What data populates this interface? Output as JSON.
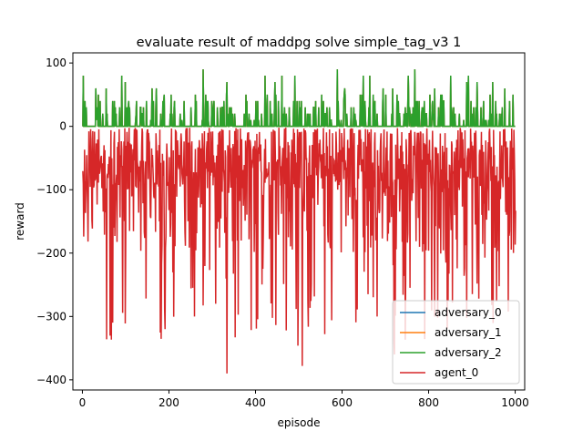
{
  "chart_data": {
    "type": "line",
    "title": "evaluate result of maddpg solve simple_tag_v3 1",
    "xlabel": "episode",
    "ylabel": "reward",
    "xlim": [
      -22,
      1022
    ],
    "ylim": [
      -416,
      116
    ],
    "xticks": [
      0,
      200,
      400,
      600,
      800,
      1000
    ],
    "yticks": [
      100,
      0,
      -100,
      -200,
      -300,
      -400
    ],
    "x_tick_labels": [
      "0",
      "200",
      "400",
      "600",
      "800",
      "1000"
    ],
    "y_tick_labels": [
      "100",
      "0",
      "−100",
      "−200",
      "−300",
      "−400"
    ],
    "grid": false,
    "legend_position": "lower-right",
    "n_episodes": 1000,
    "series": [
      {
        "name": "adversary_0",
        "color": "#1f77b4",
        "approx_range": [
          0,
          90
        ],
        "typical": 0
      },
      {
        "name": "adversary_1",
        "color": "#ff7f0e",
        "approx_range": [
          0,
          90
        ],
        "typical": 0
      },
      {
        "name": "adversary_2",
        "color": "#2ca02c",
        "approx_range": [
          0,
          90
        ],
        "typical": 0
      },
      {
        "name": "agent_0",
        "color": "#d62728",
        "approx_range": [
          -390,
          0
        ],
        "typical": -50
      }
    ]
  }
}
